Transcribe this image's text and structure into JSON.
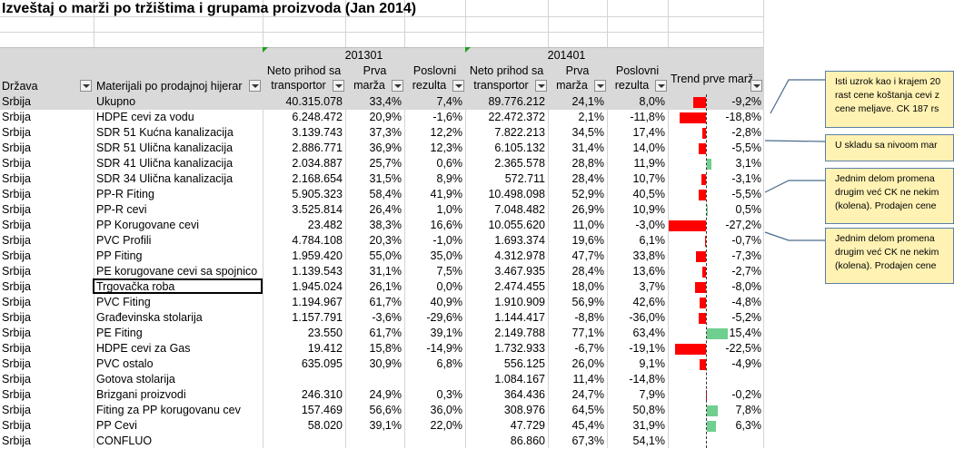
{
  "title": "Izveštaj o marži po tržištima i grupama proizvoda (Jan 2014)",
  "periods": [
    "201301",
    "201401"
  ],
  "headers": {
    "drzava": "Država",
    "materijali": "Materijali po prodajnoj hijerar",
    "neto1": [
      "Neto prihod sa",
      "transportor"
    ],
    "prva1": [
      "Prva",
      "marža"
    ],
    "posl1": [
      "Poslovni",
      "rezulta"
    ],
    "neto2": [
      "Neto prihod sa",
      "transportor"
    ],
    "prva2": [
      "Prva",
      "marža"
    ],
    "posl2": [
      "Poslovni",
      "rezulta"
    ],
    "trend": "Trend prve marž"
  },
  "colors": {
    "negative": "#ff0000",
    "positive": "#6fcf8f",
    "header_bg": "#d9d9d9",
    "note_bg": "#fff2b3"
  },
  "rows": [
    {
      "drzava": "Srbija",
      "materijal": "Ukupno",
      "neto1": "40.315.078",
      "prva1": "33,4%",
      "posl1": "7,4%",
      "neto2": "89.776.212",
      "prva2": "24,1%",
      "posl2": "8,0%",
      "trend": "-9,2%",
      "trend_value": -9.2
    },
    {
      "drzava": "Srbija",
      "materijal": "HDPE cevi za vodu",
      "neto1": "6.248.472",
      "prva1": "20,9%",
      "posl1": "-1,6%",
      "neto2": "22.472.372",
      "prva2": "2,1%",
      "posl2": "-11,8%",
      "trend": "-18,8%",
      "trend_value": -18.8
    },
    {
      "drzava": "Srbija",
      "materijal": "SDR 51 Kućna kanalizacija",
      "neto1": "3.139.743",
      "prva1": "37,3%",
      "posl1": "12,2%",
      "neto2": "7.822.213",
      "prva2": "34,5%",
      "posl2": "17,4%",
      "trend": "-2,8%",
      "trend_value": -2.8
    },
    {
      "drzava": "Srbija",
      "materijal": "SDR 51 Ulična kanalizacija",
      "neto1": "2.886.771",
      "prva1": "36,9%",
      "posl1": "12,3%",
      "neto2": "6.105.132",
      "prva2": "31,4%",
      "posl2": "14,0%",
      "trend": "-5,5%",
      "trend_value": -5.5
    },
    {
      "drzava": "Srbija",
      "materijal": "SDR 41 Ulična kanalizacija",
      "neto1": "2.034.887",
      "prva1": "25,7%",
      "posl1": "0,6%",
      "neto2": "2.365.578",
      "prva2": "28,8%",
      "posl2": "11,9%",
      "trend": "3,1%",
      "trend_value": 3.1
    },
    {
      "drzava": "Srbija",
      "materijal": "SDR 34 Ulična kanalizacija",
      "neto1": "2.168.654",
      "prva1": "31,5%",
      "posl1": "8,9%",
      "neto2": "572.711",
      "prva2": "28,4%",
      "posl2": "10,7%",
      "trend": "-3,1%",
      "trend_value": -3.1
    },
    {
      "drzava": "Srbija",
      "materijal": "PP-R Fiting",
      "neto1": "5.905.323",
      "prva1": "58,4%",
      "posl1": "41,9%",
      "neto2": "10.498.098",
      "prva2": "52,9%",
      "posl2": "40,5%",
      "trend": "-5,5%",
      "trend_value": -5.5
    },
    {
      "drzava": "Srbija",
      "materijal": "PP-R cevi",
      "neto1": "3.525.814",
      "prva1": "26,4%",
      "posl1": "1,0%",
      "neto2": "7.048.482",
      "prva2": "26,9%",
      "posl2": "10,9%",
      "trend": "0,5%",
      "trend_value": 0.5
    },
    {
      "drzava": "Srbija",
      "materijal": "PP Korugovane cevi",
      "neto1": "23.482",
      "prva1": "38,3%",
      "posl1": "16,6%",
      "neto2": "10.055.620",
      "prva2": "11,0%",
      "posl2": "-3,0%",
      "trend": "-27,2%",
      "trend_value": -27.2
    },
    {
      "drzava": "Srbija",
      "materijal": "PVC Profili",
      "neto1": "4.784.108",
      "prva1": "20,3%",
      "posl1": "-1,0%",
      "neto2": "1.693.374",
      "prva2": "19,6%",
      "posl2": "6,1%",
      "trend": "-0,7%",
      "trend_value": -0.7
    },
    {
      "drzava": "Srbija",
      "materijal": "PP Fiting",
      "neto1": "1.959.420",
      "prva1": "55,0%",
      "posl1": "35,0%",
      "neto2": "4.312.978",
      "prva2": "47,7%",
      "posl2": "33,8%",
      "trend": "-7,3%",
      "trend_value": -7.3
    },
    {
      "drzava": "Srbija",
      "materijal": "PE korugovane cevi sa spojnico",
      "neto1": "1.139.543",
      "prva1": "31,1%",
      "posl1": "7,5%",
      "neto2": "3.467.935",
      "prva2": "28,4%",
      "posl2": "13,6%",
      "trend": "-2,7%",
      "trend_value": -2.7
    },
    {
      "drzava": "Srbija",
      "materijal": "Trgovačka roba",
      "neto1": "1.945.024",
      "prva1": "26,1%",
      "posl1": "0,0%",
      "neto2": "2.474.455",
      "prva2": "18,0%",
      "posl2": "3,7%",
      "trend": "-8,0%",
      "trend_value": -8.0
    },
    {
      "drzava": "Srbija",
      "materijal": "PVC Fiting",
      "neto1": "1.194.967",
      "prva1": "61,7%",
      "posl1": "40,9%",
      "neto2": "1.910.909",
      "prva2": "56,9%",
      "posl2": "42,6%",
      "trend": "-4,8%",
      "trend_value": -4.8
    },
    {
      "drzava": "Srbija",
      "materijal": "Građevinska stolarija",
      "neto1": "1.157.791",
      "prva1": "-3,6%",
      "posl1": "-29,6%",
      "neto2": "1.144.417",
      "prva2": "-8,8%",
      "posl2": "-36,0%",
      "trend": "-5,2%",
      "trend_value": -5.2
    },
    {
      "drzava": "Srbija",
      "materijal": "PE Fiting",
      "neto1": "23.550",
      "prva1": "61,7%",
      "posl1": "39,1%",
      "neto2": "2.149.788",
      "prva2": "77,1%",
      "posl2": "63,4%",
      "trend": "15,4%",
      "trend_value": 15.4
    },
    {
      "drzava": "Srbija",
      "materijal": "HDPE cevi za Gas",
      "neto1": "19.412",
      "prva1": "15,8%",
      "posl1": "-14,9%",
      "neto2": "1.732.933",
      "prva2": "-6,7%",
      "posl2": "-19,1%",
      "trend": "-22,5%",
      "trend_value": -22.5
    },
    {
      "drzava": "Srbija",
      "materijal": "PVC ostalo",
      "neto1": "635.095",
      "prva1": "30,9%",
      "posl1": "6,8%",
      "neto2": "556.125",
      "prva2": "26,0%",
      "posl2": "9,1%",
      "trend": "-4,9%",
      "trend_value": -4.9
    },
    {
      "drzava": "Srbija",
      "materijal": "Gotova stolarija",
      "neto1": "",
      "prva1": "",
      "posl1": "",
      "neto2": "1.084.167",
      "prva2": "11,4%",
      "posl2": "-14,8%",
      "trend": "",
      "trend_value": null
    },
    {
      "drzava": "Srbija",
      "materijal": "Brizgani proizvodi",
      "neto1": "246.310",
      "prva1": "24,9%",
      "posl1": "0,3%",
      "neto2": "364.436",
      "prva2": "24,7%",
      "posl2": "7,9%",
      "trend": "-0,2%",
      "trend_value": -0.2
    },
    {
      "drzava": "Srbija",
      "materijal": "Fiting za PP korugovanu cev",
      "neto1": "157.469",
      "prva1": "56,6%",
      "posl1": "36,0%",
      "neto2": "308.976",
      "prva2": "64,5%",
      "posl2": "50,8%",
      "trend": "7,8%",
      "trend_value": 7.8
    },
    {
      "drzava": "Srbija",
      "materijal": "PP Cevi",
      "neto1": "58.020",
      "prva1": "39,1%",
      "posl1": "22,0%",
      "neto2": "47.729",
      "prva2": "45,4%",
      "posl2": "31,9%",
      "trend": "6,3%",
      "trend_value": 6.3
    },
    {
      "drzava": "Srbija",
      "materijal": "CONFLUO",
      "neto1": "",
      "prva1": "",
      "posl1": "",
      "neto2": "86.860",
      "prva2": "67,3%",
      "posl2": "54,1%",
      "trend": "",
      "trend_value": null
    }
  ],
  "notes": [
    {
      "lines": [
        "Isti uzrok kao i krajem 20",
        "rast cene koštanja cevi z",
        "cene meljave. CK 187 rs"
      ]
    },
    {
      "lines": [
        "U skladu sa nivoom mar"
      ]
    },
    {
      "lines": [
        "Jednim delom promena",
        "drugim već CK ne nekim",
        "(kolena). Prodajen cene"
      ]
    },
    {
      "lines": [
        "Jednim delom promena",
        "drugim već CK ne nekim",
        "(kolena). Prodajen cene"
      ]
    }
  ]
}
